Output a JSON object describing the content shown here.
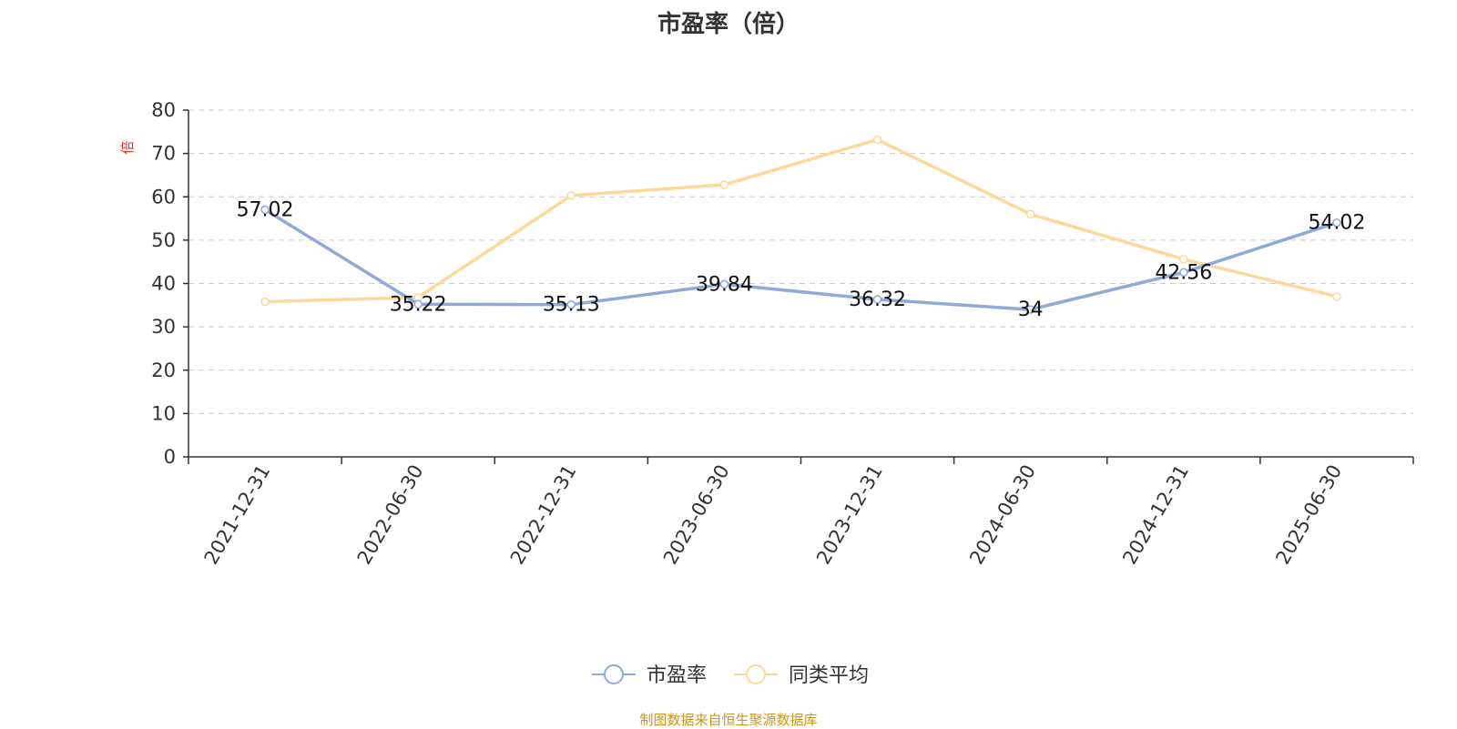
{
  "chart_data": {
    "type": "line",
    "title": "市盈率（倍）",
    "ylabel": "倍",
    "xlabel": "",
    "categories": [
      "2021-12-31",
      "2022-06-30",
      "2022-12-31",
      "2023-06-30",
      "2023-12-31",
      "2024-06-30",
      "2024-12-31",
      "2025-06-30"
    ],
    "ylim": [
      0,
      80
    ],
    "yticks": [
      0,
      10,
      20,
      30,
      40,
      50,
      60,
      70,
      80
    ],
    "grid": true,
    "legend_position": "bottom-center",
    "series": [
      {
        "name": "市盈率",
        "color": "#8eaad6",
        "values": [
          57.02,
          35.22,
          35.13,
          39.84,
          36.32,
          34,
          42.56,
          54.02
        ],
        "labels": [
          "57.02",
          "35.22",
          "35.13",
          "39.84",
          "36.32",
          "34",
          "42.56",
          "54.02"
        ]
      },
      {
        "name": "同类平均",
        "color": "#fdd89a",
        "values": [
          35.8,
          36.8,
          60.3,
          62.8,
          73.2,
          56.0,
          45.6,
          37.0
        ]
      }
    ]
  },
  "footer": {
    "source": "制图数据来自恒生聚源数据库"
  }
}
